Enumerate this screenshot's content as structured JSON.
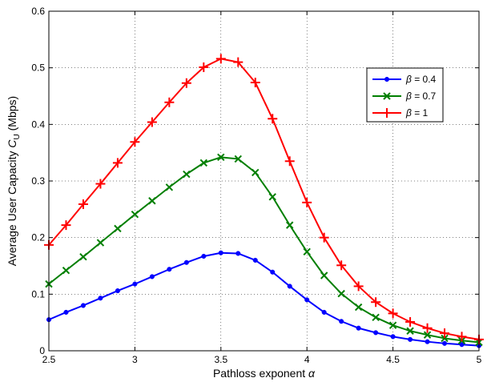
{
  "chart_data": {
    "type": "line",
    "xlabel": "Pathloss exponent α",
    "ylabel": "Average User Capacity  C_U (Mbps)",
    "ylabel_main": "Average User Capacity  ",
    "ylabel_sym": "C",
    "ylabel_sub": "U",
    "ylabel_unit": " (Mbps)",
    "xlabel_main": "Pathloss exponent ",
    "xlabel_sym": "α",
    "xlim": [
      2.5,
      5
    ],
    "ylim": [
      0,
      0.6
    ],
    "xticks": [
      "2.5",
      "3",
      "3.5",
      "4",
      "4.5",
      "5"
    ],
    "yticks": [
      "0",
      "0.1",
      "0.2",
      "0.3",
      "0.4",
      "0.5",
      "0.6"
    ],
    "grid": true,
    "legend_position": "right",
    "x": [
      2.5,
      2.6,
      2.7,
      2.8,
      2.9,
      3.0,
      3.1,
      3.2,
      3.3,
      3.4,
      3.5,
      3.6,
      3.7,
      3.8,
      3.9,
      4.0,
      4.1,
      4.2,
      4.3,
      4.4,
      4.5,
      4.6,
      4.7,
      4.8,
      4.9,
      5.0
    ],
    "series": [
      {
        "name": "β = 0.4",
        "legend_sym": "β",
        "legend_val": " = 0.4",
        "color": "#0000ff",
        "marker": "dot",
        "values": [
          0.055,
          0.068,
          0.08,
          0.093,
          0.106,
          0.118,
          0.131,
          0.144,
          0.156,
          0.167,
          0.173,
          0.172,
          0.16,
          0.139,
          0.114,
          0.09,
          0.068,
          0.052,
          0.04,
          0.032,
          0.025,
          0.02,
          0.016,
          0.013,
          0.011,
          0.009
        ]
      },
      {
        "name": "β = 0.7",
        "legend_sym": "β",
        "legend_val": " = 0.7",
        "color": "#007f00",
        "marker": "x",
        "values": [
          0.118,
          0.142,
          0.166,
          0.191,
          0.216,
          0.241,
          0.265,
          0.289,
          0.312,
          0.332,
          0.342,
          0.339,
          0.315,
          0.272,
          0.222,
          0.175,
          0.133,
          0.101,
          0.077,
          0.059,
          0.045,
          0.035,
          0.028,
          0.022,
          0.018,
          0.015
        ]
      },
      {
        "name": "β = 1",
        "legend_sym": "β",
        "legend_val": " = 1",
        "color": "#ff0000",
        "marker": "plus",
        "values": [
          0.187,
          0.222,
          0.259,
          0.295,
          0.332,
          0.369,
          0.404,
          0.439,
          0.473,
          0.501,
          0.516,
          0.51,
          0.474,
          0.41,
          0.335,
          0.262,
          0.2,
          0.151,
          0.114,
          0.086,
          0.066,
          0.051,
          0.04,
          0.031,
          0.025,
          0.02
        ]
      }
    ]
  }
}
